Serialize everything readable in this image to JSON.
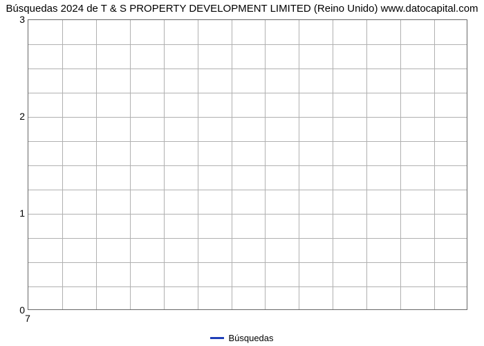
{
  "chart": {
    "type": "line",
    "title": "Búsquedas 2024 de T & S PROPERTY DEVELOPMENT LIMITED (Reino Unido) www.datocapital.com",
    "title_fontsize": 15,
    "title_color": "#000000",
    "background_color": "#ffffff",
    "plot_border_color": "#666666",
    "grid_color": "#b0b0b0",
    "y_axis": {
      "min": 0,
      "max": 3,
      "major_ticks": [
        0,
        1,
        2,
        3
      ],
      "minor_per_major": 4,
      "label_fontsize": 14
    },
    "x_axis": {
      "tick_count": 13,
      "visible_labels": [
        {
          "index": 0,
          "text": "7"
        }
      ],
      "label_fontsize": 14
    },
    "series": [
      {
        "name": "Búsquedas",
        "color": "#1f3fb8",
        "line_width": 3,
        "data": []
      }
    ],
    "legend": {
      "position": "bottom-center",
      "items": [
        {
          "label": "Búsquedas",
          "color": "#1f3fb8"
        }
      ],
      "fontsize": 13
    }
  }
}
